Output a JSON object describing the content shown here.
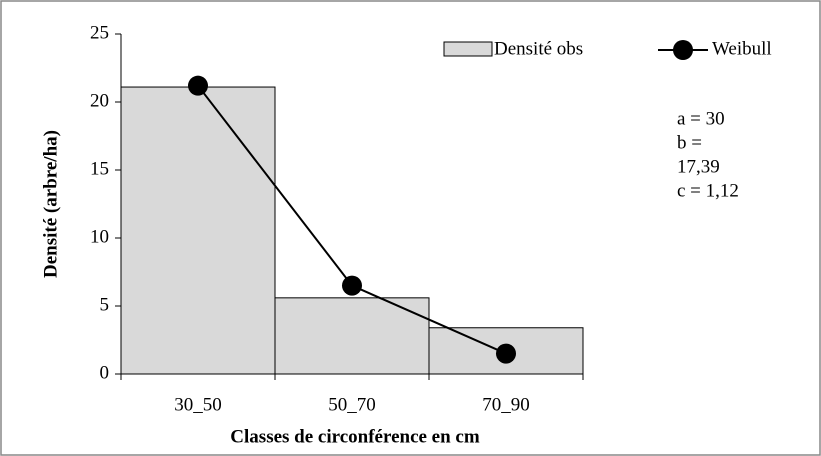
{
  "chart_data": {
    "type": "bar",
    "x_label": "Classes de circonférence en cm",
    "y_label": "Densité (arbre/ha)",
    "categories": [
      "30_50",
      "50_70",
      "70_90"
    ],
    "series": [
      {
        "name": "Densité obs",
        "type": "bar",
        "color": "#d9d9d9",
        "values": [
          21.1,
          5.6,
          3.4
        ]
      },
      {
        "name": "Weibull",
        "type": "line",
        "color": "#000000",
        "values": [
          21.2,
          6.5,
          1.5
        ]
      }
    ],
    "annotation": [
      "a = 30",
      "b =",
      "17,39",
      "c = 1,12"
    ],
    "ylim": [
      0,
      25
    ],
    "yticks": [
      0,
      5,
      10,
      15,
      20,
      25
    ],
    "legend": "top-right"
  }
}
